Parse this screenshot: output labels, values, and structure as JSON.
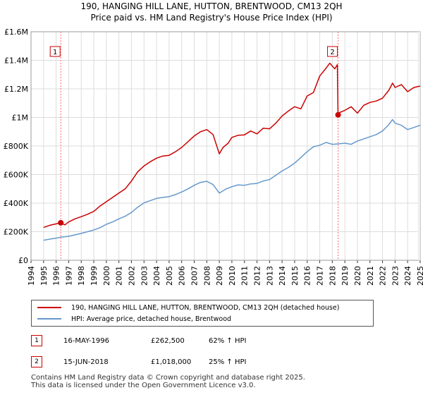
{
  "header": {
    "title_line1": "190, HANGING HILL LANE, HUTTON, BRENTWOOD, CM13 2QH",
    "title_line2": "Price paid vs. HM Land Registry's House Price Index (HPI)"
  },
  "colors": {
    "property": "#cc0000",
    "hpi": "#6699cc",
    "grid": "#dddddd",
    "marker_line": "#ff6666"
  },
  "chart_data": {
    "type": "line",
    "title": "190, HANGING HILL LANE, HUTTON, BRENTWOOD, CM13 2QH — Price paid vs. HM Land Registry's House Price Index (HPI)",
    "xlabel": "",
    "ylabel": "",
    "xlim": [
      1994.0,
      2025.0
    ],
    "ylim": [
      0,
      1600000
    ],
    "y_ticks": [
      0,
      200000,
      400000,
      600000,
      800000,
      1000000,
      1200000,
      1400000,
      1600000
    ],
    "y_tick_labels": [
      "£0",
      "£200K",
      "£400K",
      "£600K",
      "£800K",
      "£1M",
      "£1.2M",
      "£1.4M",
      "£1.6M"
    ],
    "x_ticks": [
      1994,
      1995,
      1996,
      1997,
      1998,
      1999,
      2000,
      2001,
      2002,
      2003,
      2004,
      2005,
      2006,
      2007,
      2008,
      2009,
      2010,
      2011,
      2012,
      2013,
      2014,
      2015,
      2016,
      2017,
      2018,
      2019,
      2020,
      2021,
      2022,
      2023,
      2024,
      2025
    ],
    "x_tick_labels": [
      "1994",
      "1995",
      "1996",
      "1997",
      "1998",
      "1999",
      "2000",
      "2001",
      "2002",
      "2003",
      "2004",
      "2005",
      "2006",
      "2007",
      "2008",
      "2009",
      "2010",
      "2011",
      "2012",
      "2013",
      "2014",
      "2015",
      "2016",
      "2017",
      "2018",
      "2019",
      "2020",
      "2021",
      "2022",
      "2023",
      "2024",
      "2025"
    ],
    "grid": true,
    "series": [
      {
        "name": "190, HANGING HILL LANE, HUTTON, BRENTWOOD, CM13 2QH (detached house)",
        "color": "#cc0000",
        "x": [
          1995.0,
          1995.5,
          1996.0,
          1996.37,
          1996.7,
          1997.0,
          1997.5,
          1998.0,
          1998.5,
          1999.0,
          1999.5,
          2000.0,
          2000.5,
          2001.0,
          2001.5,
          2002.0,
          2002.5,
          2003.0,
          2003.5,
          2004.0,
          2004.5,
          2005.0,
          2005.5,
          2006.0,
          2006.5,
          2007.0,
          2007.5,
          2008.0,
          2008.5,
          2009.0,
          2009.3,
          2009.7,
          2010.0,
          2010.5,
          2011.0,
          2011.5,
          2012.0,
          2012.5,
          2013.0,
          2013.5,
          2014.0,
          2014.5,
          2015.0,
          2015.5,
          2016.0,
          2016.5,
          2017.0,
          2017.5,
          2017.8,
          2018.2,
          2018.4,
          2018.46,
          2018.6,
          2019.0,
          2019.5,
          2020.0,
          2020.5,
          2021.0,
          2021.5,
          2022.0,
          2022.5,
          2022.8,
          2023.0,
          2023.5,
          2024.0,
          2024.5,
          2025.0
        ],
        "values": [
          230000,
          245000,
          255000,
          262500,
          248000,
          268000,
          290000,
          305000,
          322000,
          342000,
          380000,
          410000,
          440000,
          470000,
          500000,
          555000,
          620000,
          660000,
          690000,
          715000,
          730000,
          735000,
          760000,
          790000,
          830000,
          870000,
          900000,
          915000,
          880000,
          745000,
          790000,
          820000,
          860000,
          875000,
          878000,
          905000,
          885000,
          925000,
          920000,
          960000,
          1010000,
          1045000,
          1075000,
          1060000,
          1150000,
          1175000,
          1290000,
          1345000,
          1380000,
          1340000,
          1370000,
          1018000,
          1035000,
          1050000,
          1075000,
          1030000,
          1085000,
          1105000,
          1115000,
          1135000,
          1190000,
          1240000,
          1210000,
          1230000,
          1180000,
          1210000,
          1220000
        ]
      },
      {
        "name": "HPI: Average price, detached house, Brentwood",
        "color": "#6699cc",
        "x": [
          1995.0,
          1995.5,
          1996.0,
          1996.37,
          1997.0,
          1997.5,
          1998.0,
          1998.5,
          1999.0,
          1999.5,
          2000.0,
          2000.5,
          2001.0,
          2001.5,
          2002.0,
          2002.5,
          2003.0,
          2003.5,
          2004.0,
          2004.5,
          2005.0,
          2005.5,
          2006.0,
          2006.5,
          2007.0,
          2007.5,
          2008.0,
          2008.5,
          2009.0,
          2009.5,
          2010.0,
          2010.5,
          2011.0,
          2011.5,
          2012.0,
          2012.5,
          2013.0,
          2013.5,
          2014.0,
          2014.5,
          2015.0,
          2015.5,
          2016.0,
          2016.5,
          2017.0,
          2017.5,
          2018.0,
          2018.46,
          2019.0,
          2019.5,
          2020.0,
          2020.5,
          2021.0,
          2021.5,
          2022.0,
          2022.5,
          2022.8,
          2023.0,
          2023.5,
          2024.0,
          2024.5,
          2025.0
        ],
        "values": [
          140000,
          148000,
          155000,
          162000,
          168000,
          178000,
          188000,
          200000,
          212000,
          228000,
          252000,
          268000,
          290000,
          308000,
          335000,
          372000,
          402000,
          418000,
          433000,
          440000,
          446000,
          460000,
          478000,
          500000,
          525000,
          545000,
          553000,
          530000,
          470000,
          498000,
          515000,
          528000,
          525000,
          535000,
          538000,
          555000,
          565000,
          595000,
          625000,
          650000,
          680000,
          720000,
          760000,
          795000,
          805000,
          825000,
          812000,
          815000,
          820000,
          812000,
          835000,
          850000,
          865000,
          880000,
          905000,
          950000,
          985000,
          960000,
          945000,
          915000,
          930000,
          945000
        ]
      }
    ],
    "annotations": [
      {
        "label": "1",
        "x": 1996.37,
        "y": 262500
      },
      {
        "label": "2",
        "x": 2018.46,
        "y": 1018000
      }
    ]
  },
  "legend": {
    "property_label": "190, HANGING HILL LANE, HUTTON, BRENTWOOD, CM13 2QH (detached house)",
    "hpi_label": "HPI: Average price, detached house, Brentwood"
  },
  "transactions": [
    {
      "badge": "1",
      "date": "16-MAY-1996",
      "price": "£262,500",
      "hpi_change": "62% ↑ HPI"
    },
    {
      "badge": "2",
      "date": "15-JUN-2018",
      "price": "£1,018,000",
      "hpi_change": "25% ↑ HPI"
    }
  ],
  "footer": {
    "line1": "Contains HM Land Registry data © Crown copyright and database right 2025.",
    "line2": "This data is licensed under the Open Government Licence v3.0."
  }
}
